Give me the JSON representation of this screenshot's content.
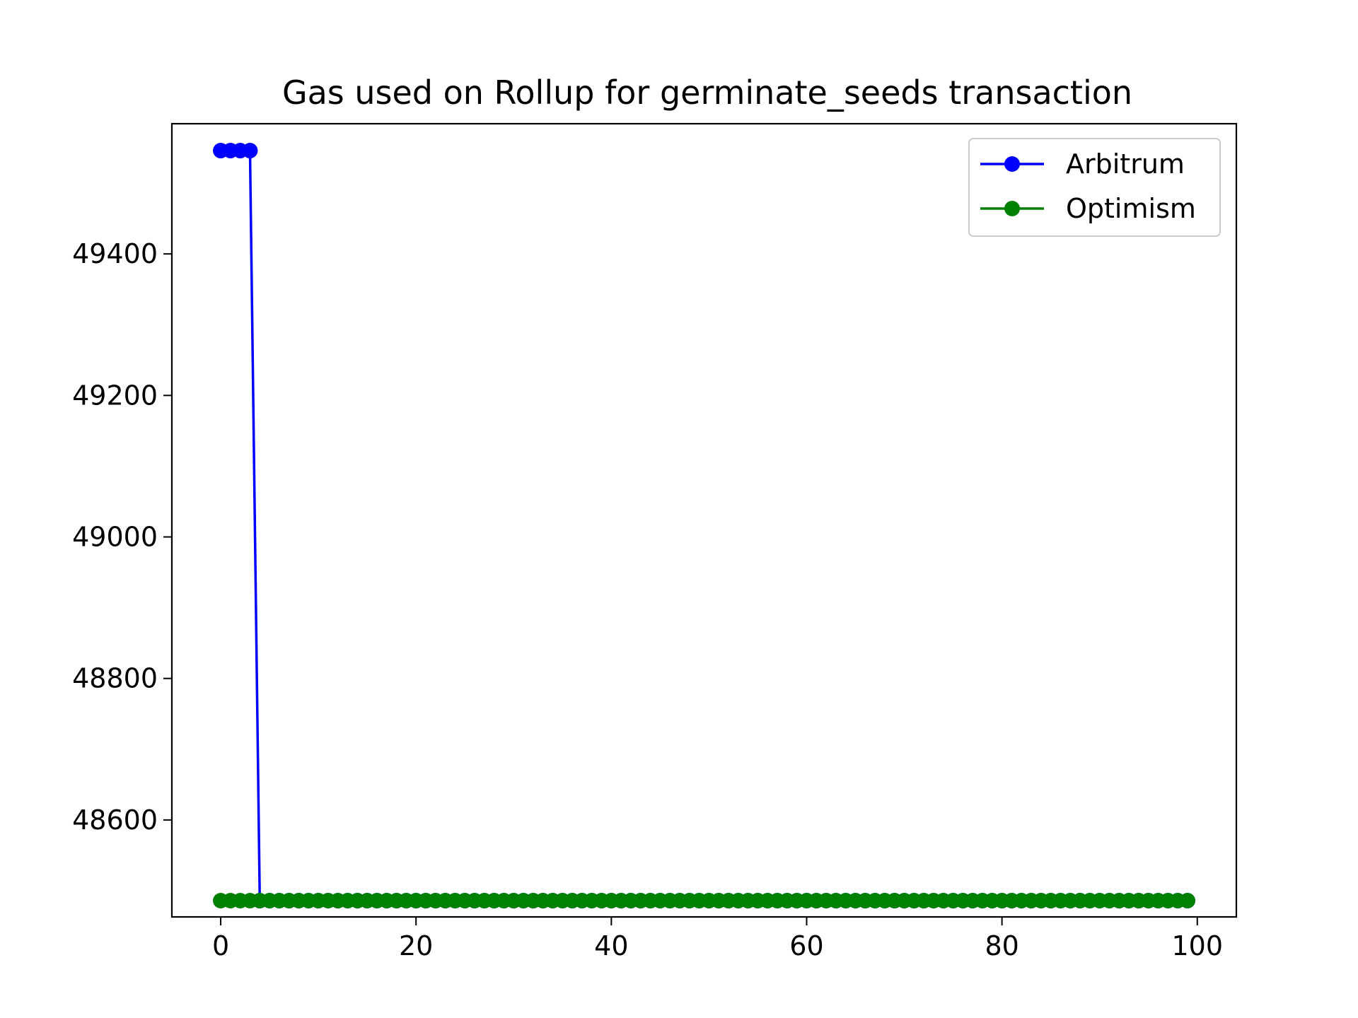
{
  "chart_data": {
    "type": "line",
    "title": "Gas used on Rollup for germinate_seeds transaction",
    "xlabel": "",
    "ylabel": "",
    "xlim": [
      -5,
      104
    ],
    "ylim": [
      48463,
      49584
    ],
    "x_ticks": [
      0,
      20,
      40,
      60,
      80,
      100
    ],
    "y_ticks": [
      48600,
      48800,
      49000,
      49200,
      49400
    ],
    "grid": false,
    "legend_position": "upper right",
    "series": [
      {
        "name": "Arbitrum",
        "color": "#0000ff",
        "marker": "circle",
        "x": [
          0,
          1,
          2,
          3,
          4,
          5,
          6,
          7,
          8,
          9,
          10,
          11,
          12,
          13,
          14,
          15,
          16,
          17,
          18,
          19,
          20,
          21,
          22,
          23,
          24,
          25,
          26,
          27,
          28,
          29,
          30,
          31,
          32,
          33,
          34,
          35,
          36,
          37,
          38,
          39,
          40,
          41,
          42,
          43,
          44,
          45,
          46,
          47,
          48,
          49,
          50,
          51,
          52,
          53,
          54,
          55,
          56,
          57,
          58,
          59,
          60,
          61,
          62,
          63,
          64,
          65,
          66,
          67,
          68,
          69,
          70,
          71,
          72,
          73,
          74,
          75,
          76,
          77,
          78,
          79,
          80,
          81,
          82,
          83,
          84,
          85,
          86,
          87,
          88,
          89,
          90,
          91,
          92,
          93,
          94,
          95,
          96,
          97,
          98,
          99
        ],
        "values": [
          49546,
          49546,
          49546,
          49546,
          48486,
          48486,
          48486,
          48486,
          48486,
          48486,
          48486,
          48486,
          48486,
          48486,
          48486,
          48486,
          48486,
          48486,
          48486,
          48486,
          48486,
          48486,
          48486,
          48486,
          48486,
          48486,
          48486,
          48486,
          48486,
          48486,
          48486,
          48486,
          48486,
          48486,
          48486,
          48486,
          48486,
          48486,
          48486,
          48486,
          48486,
          48486,
          48486,
          48486,
          48486,
          48486,
          48486,
          48486,
          48486,
          48486,
          48486,
          48486,
          48486,
          48486,
          48486,
          48486,
          48486,
          48486,
          48486,
          48486,
          48486,
          48486,
          48486,
          48486,
          48486,
          48486,
          48486,
          48486,
          48486,
          48486,
          48486,
          48486,
          48486,
          48486,
          48486,
          48486,
          48486,
          48486,
          48486,
          48486,
          48486,
          48486,
          48486,
          48486,
          48486,
          48486,
          48486,
          48486,
          48486,
          48486,
          48486,
          48486,
          48486,
          48486,
          48486,
          48486,
          48486,
          48486,
          48486,
          48486
        ]
      },
      {
        "name": "Optimism",
        "color": "#008000",
        "marker": "circle",
        "x": [
          0,
          1,
          2,
          3,
          4,
          5,
          6,
          7,
          8,
          9,
          10,
          11,
          12,
          13,
          14,
          15,
          16,
          17,
          18,
          19,
          20,
          21,
          22,
          23,
          24,
          25,
          26,
          27,
          28,
          29,
          30,
          31,
          32,
          33,
          34,
          35,
          36,
          37,
          38,
          39,
          40,
          41,
          42,
          43,
          44,
          45,
          46,
          47,
          48,
          49,
          50,
          51,
          52,
          53,
          54,
          55,
          56,
          57,
          58,
          59,
          60,
          61,
          62,
          63,
          64,
          65,
          66,
          67,
          68,
          69,
          70,
          71,
          72,
          73,
          74,
          75,
          76,
          77,
          78,
          79,
          80,
          81,
          82,
          83,
          84,
          85,
          86,
          87,
          88,
          89,
          90,
          91,
          92,
          93,
          94,
          95,
          96,
          97,
          98,
          99
        ],
        "values": [
          48486,
          48486,
          48486,
          48486,
          48486,
          48486,
          48486,
          48486,
          48486,
          48486,
          48486,
          48486,
          48486,
          48486,
          48486,
          48486,
          48486,
          48486,
          48486,
          48486,
          48486,
          48486,
          48486,
          48486,
          48486,
          48486,
          48486,
          48486,
          48486,
          48486,
          48486,
          48486,
          48486,
          48486,
          48486,
          48486,
          48486,
          48486,
          48486,
          48486,
          48486,
          48486,
          48486,
          48486,
          48486,
          48486,
          48486,
          48486,
          48486,
          48486,
          48486,
          48486,
          48486,
          48486,
          48486,
          48486,
          48486,
          48486,
          48486,
          48486,
          48486,
          48486,
          48486,
          48486,
          48486,
          48486,
          48486,
          48486,
          48486,
          48486,
          48486,
          48486,
          48486,
          48486,
          48486,
          48486,
          48486,
          48486,
          48486,
          48486,
          48486,
          48486,
          48486,
          48486,
          48486,
          48486,
          48486,
          48486,
          48486,
          48486,
          48486,
          48486,
          48486,
          48486,
          48486,
          48486,
          48486,
          48486,
          48486,
          48486
        ]
      }
    ]
  }
}
